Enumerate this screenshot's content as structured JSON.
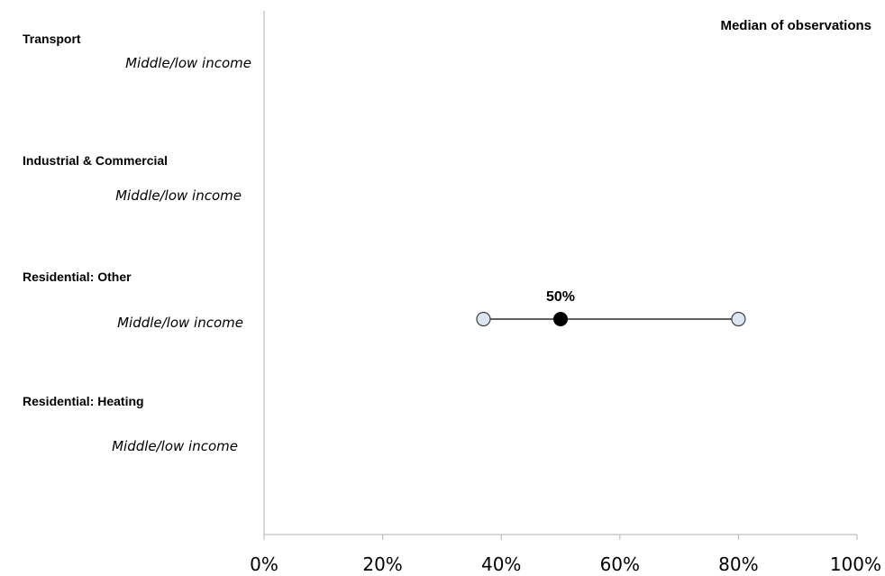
{
  "chart_data": {
    "type": "scatter",
    "title": "",
    "legend_title": "Median of observations",
    "legend_position": "top-right",
    "xlim": [
      0,
      100
    ],
    "x_tick_labels": [
      "0%",
      "20%",
      "40%",
      "60%",
      "80%",
      "100%"
    ],
    "x_ticks": [
      0,
      20,
      40,
      60,
      80,
      100
    ],
    "grid": false,
    "categories": [
      {
        "name": "Transport",
        "subgroup": "Middle/low income",
        "min": null,
        "median": null,
        "max": null,
        "median_label": ""
      },
      {
        "name": "Industrial & Commercial",
        "subgroup": "Middle/low income",
        "min": null,
        "median": null,
        "max": null,
        "median_label": ""
      },
      {
        "name": "Residential: Other",
        "subgroup": "Middle/low income",
        "min": 37,
        "median": 50,
        "max": 80,
        "median_label": "50%"
      },
      {
        "name": "Residential: Heating",
        "subgroup": "Middle/low income",
        "min": null,
        "median": null,
        "max": null,
        "median_label": ""
      }
    ],
    "colors": {
      "range_marker_fill": "#dce6f2",
      "median_marker_fill": "#000000",
      "axis": "#bfbfbf",
      "line": "#000000"
    }
  }
}
